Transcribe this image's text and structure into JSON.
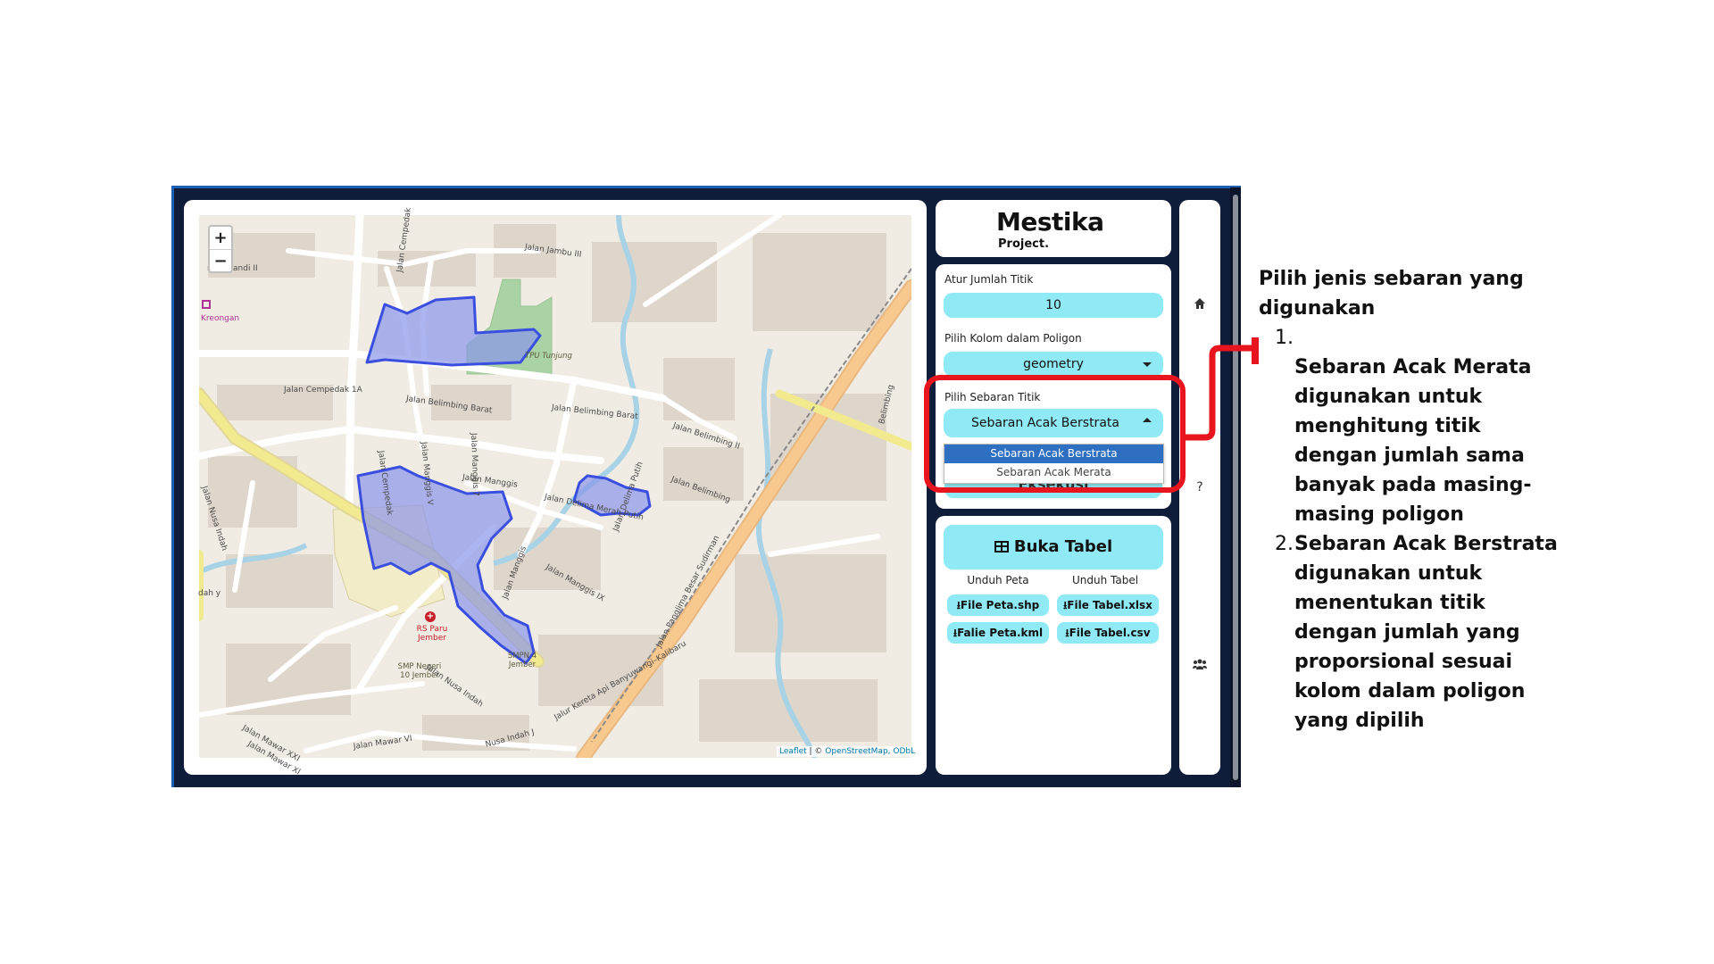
{
  "map": {
    "zoom_in": "+",
    "zoom_out": "−",
    "labels": {
      "jalan_jambu_iii": "Jalan Jambu III",
      "jalan_cempedak": "Jalan Cempedak",
      "soebandi": "r Soebandi II",
      "kreongan": "Kreongan",
      "jalan_cempedak_1a": "Jalan Cempedak 1A",
      "tpu_tunjung": "TPU Tunjung",
      "jalan_belimbing_barat_1": "Jalan Belimbing Barat",
      "jalan_belimbing_barat_2": "Jalan Belimbing Barat",
      "jalan_belimbing_ii": "Jalan Belimbing II",
      "jalan_cempedak_v": "Jalan Cempedak",
      "jalan_manggis_v": "Jalan Manggis V",
      "jalan_manggis_7": "Jalan Manggis 7",
      "jalan_manggis": "Jalan Manggis",
      "jalan_nusa_indah_1": "Jalan Nusa Indah",
      "jalan_delima_merah_putih": "Jalan Delima Merah Putih",
      "jalan_delima_putih": "Jalan Delima Putih",
      "jalan_belimbing": "Jalan Belimbing",
      "jalan_manggis_ix": "Jalan Manggis IX",
      "jalan_manggis_b": "Jalan Manggis",
      "jalan_panglima": "Jalan Panglima Besar Sudirman",
      "rs_paru": "RS Paru Jember",
      "smp_negeri": "SMP Negeri 10 Jember",
      "smpn_4": "SMPN 4 Jember",
      "jalan_nusa_indah_2": "Jalan Nusa Indah",
      "jalan_mawar_xxi": "Jalan Mawar XXI",
      "jalan_mawar_xi": "Jalan Mawar XI",
      "jalan_mawar_vi": "Jalan Mawar VI",
      "jalan_nusa_indah_j": "Nusa Indah J",
      "jalur_kereta": "Jalur Kereta Api Banyuwangi–Kalibaru",
      "dah_y": "dah y",
      "belimbing_right": "Belimbing"
    },
    "attribution_leaflet": "Leaflet",
    "attribution_sep": " | © ",
    "attribution_osm": "OpenStreetMap, ODbL"
  },
  "logo": {
    "name": "Mestika",
    "sub": "Project."
  },
  "form": {
    "jumlah_titik_label": "Atur Jumlah Titik",
    "jumlah_titik_value": "10",
    "kolom_label": "Pilih Kolom dalam Poligon",
    "kolom_value": "geometry",
    "sebaran_label": "Pilih Sebaran Titik",
    "sebaran_value": "Sebaran Acak Berstrata",
    "sebaran_options": [
      "Sebaran Acak Berstrata",
      "Sebaran Acak Merata"
    ],
    "hidden_button_text": "Eksekusi"
  },
  "downloads": {
    "table_button": "Buka Tabel",
    "peta_head": "Unduh Peta",
    "tabel_head": "Unduh Tabel",
    "shp": "File Peta.shp",
    "kml": "Falie Peta.kml",
    "xlsx": "File Tabel.xlsx",
    "csv": "File Tabel.csv"
  },
  "nav": {
    "help": "?"
  },
  "annotation": {
    "heading": "Pilih jenis sebaran yang digunakan",
    "items": [
      {
        "num": "1.",
        "text": "Sebaran Acak Merata digunakan untuk menghitung titik dengan jumlah sama banyak pada masing-masing poligon"
      },
      {
        "num": "2.",
        "text": "Sebaran Acak Berstrata digunakan untuk menentukan titik dengan jumlah yang proporsional sesuai kolom dalam poligon yang dipilih"
      }
    ]
  },
  "colors": {
    "accent": "#8feaf5",
    "frame": "#0f1d3a",
    "highlight": "#e8141e",
    "polygon_fill": "#8a96ea",
    "polygon_stroke": "#3a4ee0",
    "dropdown_selected": "#2e6fc2"
  },
  "icons": {
    "home": "home-icon",
    "users": "users-icon",
    "table": "table-icon",
    "download": "download-icon"
  }
}
